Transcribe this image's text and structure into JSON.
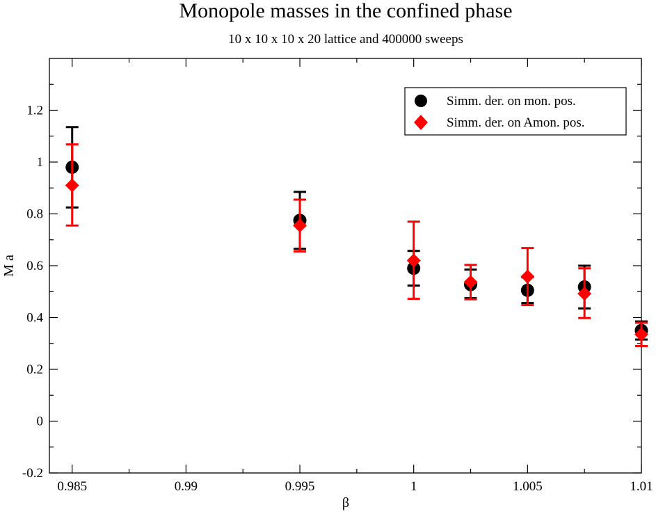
{
  "chart_data": {
    "type": "scatter",
    "title": "Monopole masses in the confined phase",
    "subtitle": "10 x 10 x 10 x 20 lattice  and 400000 sweeps",
    "xlabel": "β",
    "ylabel": "M a",
    "xlim": [
      0.984,
      1.01
    ],
    "ylim": [
      -0.2,
      1.4
    ],
    "x_ticks": [
      0.985,
      0.99,
      0.995,
      1,
      1.005,
      1.01
    ],
    "x_tick_labels": [
      "0.985",
      "0.99",
      "0.995",
      "1",
      "1.005",
      "1.01"
    ],
    "y_ticks": [
      -0.2,
      0,
      0.2,
      0.4,
      0.6,
      0.8,
      1,
      1.2
    ],
    "y_tick_labels": [
      "-0.2",
      "0",
      "0.2",
      "0.4",
      "0.6",
      "0.8",
      "1",
      "1.2"
    ],
    "legend_position": "top-right",
    "series": [
      {
        "name": "Simm. der. on mon. pos.",
        "marker": "circle",
        "color": "#000000",
        "x": [
          0.985,
          0.995,
          1.0,
          1.0025,
          1.005,
          1.0075,
          1.01
        ],
        "y": [
          0.98,
          0.775,
          0.59,
          0.527,
          0.505,
          0.518,
          0.35
        ],
        "err_low": [
          0.825,
          0.665,
          0.523,
          0.475,
          0.456,
          0.435,
          0.315
        ],
        "err_high": [
          1.135,
          0.885,
          0.657,
          0.585,
          0.555,
          0.6,
          0.385
        ]
      },
      {
        "name": "Simm. der. on Amon. pos.",
        "marker": "diamond",
        "color": "#ff0000",
        "x": [
          0.985,
          0.995,
          1.0,
          1.0025,
          1.005,
          1.0075,
          1.01
        ],
        "y": [
          0.91,
          0.755,
          0.62,
          0.537,
          0.558,
          0.492,
          0.335
        ],
        "err_low": [
          0.755,
          0.655,
          0.472,
          0.47,
          0.448,
          0.398,
          0.29
        ],
        "err_high": [
          1.068,
          0.855,
          0.77,
          0.603,
          0.668,
          0.59,
          0.38
        ]
      }
    ]
  }
}
